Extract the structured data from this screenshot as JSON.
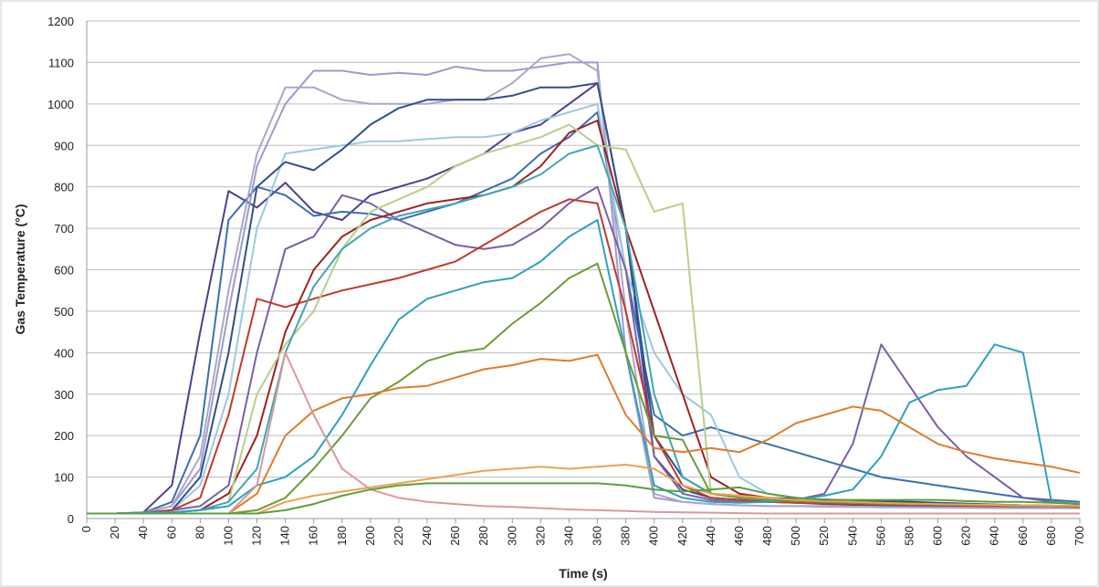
{
  "chart_data": {
    "type": "line",
    "y_label": "Gas Temperature (°C)",
    "x_label": "Time (s)",
    "x": [
      0,
      20,
      40,
      60,
      80,
      100,
      120,
      140,
      160,
      180,
      200,
      220,
      240,
      260,
      280,
      300,
      320,
      340,
      360,
      380,
      400,
      420,
      440,
      460,
      480,
      500,
      520,
      540,
      560,
      580,
      600,
      620,
      640,
      660,
      680,
      700
    ],
    "xlim": [
      0,
      700
    ],
    "xticks": [
      0,
      20,
      40,
      60,
      80,
      100,
      120,
      140,
      160,
      180,
      200,
      220,
      240,
      260,
      280,
      300,
      320,
      340,
      360,
      380,
      400,
      420,
      440,
      460,
      480,
      500,
      520,
      540,
      560,
      580,
      600,
      620,
      640,
      660,
      680,
      700
    ],
    "ylim": [
      0,
      1200
    ],
    "yticks": [
      0,
      100,
      200,
      300,
      400,
      500,
      600,
      700,
      800,
      900,
      1000,
      1100,
      1200
    ],
    "grid": true,
    "series": [
      {
        "color": "#4b3f8f",
        "values": [
          12,
          12,
          15,
          80,
          450,
          790,
          750,
          810,
          740,
          720,
          780,
          800,
          820,
          850,
          880,
          930,
          950,
          1000,
          1050,
          700,
          150,
          70,
          50,
          45,
          40,
          38,
          35,
          33,
          32,
          31,
          30,
          30,
          29,
          28,
          28,
          27
        ]
      },
      {
        "color": "#3a6fb0",
        "values": [
          12,
          12,
          14,
          40,
          200,
          720,
          800,
          780,
          730,
          740,
          735,
          720,
          740,
          760,
          790,
          820,
          880,
          920,
          980,
          600,
          250,
          200,
          220,
          200,
          180,
          160,
          140,
          120,
          100,
          90,
          80,
          70,
          60,
          50,
          45,
          40
        ]
      },
      {
        "color": "#9d9ad0",
        "values": [
          12,
          12,
          14,
          30,
          120,
          500,
          850,
          1000,
          1080,
          1080,
          1070,
          1075,
          1070,
          1090,
          1080,
          1080,
          1090,
          1100,
          1100,
          400,
          50,
          40,
          35,
          32,
          30,
          30,
          30,
          28,
          28,
          27,
          27,
          26,
          26,
          25,
          25,
          25
        ]
      },
      {
        "color": "#aaa8c8",
        "values": [
          12,
          12,
          14,
          30,
          150,
          550,
          880,
          1040,
          1040,
          1010,
          1000,
          1000,
          1000,
          1010,
          1010,
          1050,
          1110,
          1120,
          1080,
          500,
          60,
          40,
          35,
          32,
          30,
          30,
          28,
          28,
          27,
          27,
          26,
          26,
          25,
          25,
          25,
          25
        ]
      },
      {
        "color": "#9cc8e2",
        "values": [
          12,
          12,
          14,
          20,
          80,
          300,
          700,
          880,
          890,
          900,
          910,
          910,
          915,
          920,
          920,
          930,
          960,
          980,
          1000,
          600,
          400,
          300,
          250,
          100,
          60,
          50,
          45,
          40,
          38,
          36,
          35,
          34,
          33,
          32,
          31,
          30
        ]
      },
      {
        "color": "#2e4f8a",
        "values": [
          12,
          12,
          14,
          20,
          100,
          400,
          800,
          860,
          840,
          890,
          950,
          990,
          1010,
          1010,
          1010,
          1020,
          1040,
          1040,
          1050,
          700,
          200,
          100,
          60,
          55,
          50,
          48,
          46,
          44,
          42,
          40,
          38,
          36,
          34,
          32,
          30,
          28
        ]
      },
      {
        "color": "#7b5ea7",
        "values": [
          12,
          12,
          14,
          20,
          30,
          80,
          400,
          650,
          680,
          780,
          760,
          720,
          690,
          660,
          650,
          660,
          700,
          760,
          800,
          600,
          150,
          60,
          45,
          40,
          40,
          45,
          60,
          180,
          420,
          320,
          220,
          150,
          100,
          50,
          40,
          35
        ]
      },
      {
        "color": "#c0392b",
        "values": [
          12,
          12,
          14,
          20,
          50,
          250,
          530,
          510,
          530,
          550,
          565,
          580,
          600,
          620,
          660,
          700,
          740,
          770,
          760,
          500,
          200,
          80,
          50,
          45,
          40,
          38,
          36,
          35,
          34,
          33,
          32,
          31,
          30,
          30,
          29,
          28
        ]
      },
      {
        "color": "#a02020",
        "values": [
          12,
          12,
          14,
          15,
          20,
          60,
          200,
          450,
          600,
          680,
          720,
          740,
          760,
          770,
          780,
          800,
          850,
          930,
          960,
          700,
          500,
          300,
          100,
          60,
          50,
          45,
          42,
          40,
          38,
          36,
          35,
          34,
          33,
          32,
          31,
          30
        ]
      },
      {
        "color": "#b5d08a",
        "values": [
          12,
          12,
          14,
          15,
          20,
          40,
          300,
          420,
          500,
          650,
          740,
          770,
          800,
          850,
          880,
          900,
          920,
          950,
          900,
          890,
          740,
          760,
          60,
          50,
          45,
          42,
          40,
          38,
          36,
          35,
          34,
          33,
          32,
          31,
          30,
          30
        ]
      },
      {
        "color": "#3fa6b5",
        "values": [
          12,
          12,
          14,
          15,
          20,
          40,
          120,
          400,
          560,
          650,
          700,
          730,
          745,
          760,
          780,
          800,
          830,
          880,
          900,
          700,
          300,
          100,
          60,
          50,
          45,
          42,
          40,
          38,
          36,
          35,
          34,
          33,
          32,
          31,
          30,
          30
        ]
      },
      {
        "color": "#2ea0c0",
        "values": [
          12,
          12,
          14,
          15,
          20,
          30,
          80,
          100,
          150,
          250,
          370,
          480,
          530,
          550,
          570,
          580,
          620,
          680,
          720,
          400,
          80,
          50,
          40,
          38,
          40,
          45,
          55,
          70,
          150,
          280,
          310,
          320,
          420,
          400,
          40,
          35
        ]
      },
      {
        "color": "#6f9a3a",
        "values": [
          12,
          12,
          12,
          12,
          12,
          12,
          20,
          50,
          120,
          200,
          290,
          330,
          380,
          400,
          410,
          470,
          520,
          580,
          615,
          400,
          200,
          190,
          60,
          50,
          45,
          42,
          40,
          38,
          36,
          35,
          34,
          33,
          32,
          31,
          30,
          30
        ]
      },
      {
        "color": "#e07b28",
        "values": [
          12,
          12,
          12,
          12,
          12,
          12,
          60,
          200,
          260,
          290,
          300,
          315,
          320,
          340,
          360,
          370,
          385,
          380,
          395,
          250,
          170,
          160,
          170,
          160,
          190,
          230,
          250,
          270,
          260,
          220,
          180,
          160,
          145,
          135,
          125,
          110
        ]
      },
      {
        "color": "#f0a050",
        "values": [
          12,
          12,
          12,
          12,
          12,
          12,
          12,
          40,
          55,
          65,
          75,
          85,
          95,
          105,
          115,
          120,
          125,
          120,
          125,
          130,
          120,
          80,
          60,
          55,
          50,
          45,
          42,
          40,
          38,
          36,
          35,
          34,
          33,
          32,
          31,
          30
        ]
      },
      {
        "color": "#d89a9a",
        "values": [
          12,
          12,
          12,
          12,
          12,
          12,
          80,
          400,
          250,
          120,
          70,
          50,
          40,
          35,
          30,
          28,
          25,
          22,
          20,
          18,
          16,
          15,
          14,
          13,
          12,
          12,
          12,
          12,
          12,
          12,
          12,
          12,
          12,
          12,
          12,
          12
        ]
      },
      {
        "color": "#5aa040",
        "values": [
          12,
          12,
          12,
          12,
          12,
          12,
          12,
          20,
          35,
          55,
          70,
          80,
          85,
          85,
          85,
          85,
          85,
          85,
          85,
          80,
          70,
          65,
          70,
          75,
          60,
          50,
          45,
          45,
          45,
          45,
          45,
          42,
          40,
          40,
          38,
          35
        ]
      }
    ]
  }
}
